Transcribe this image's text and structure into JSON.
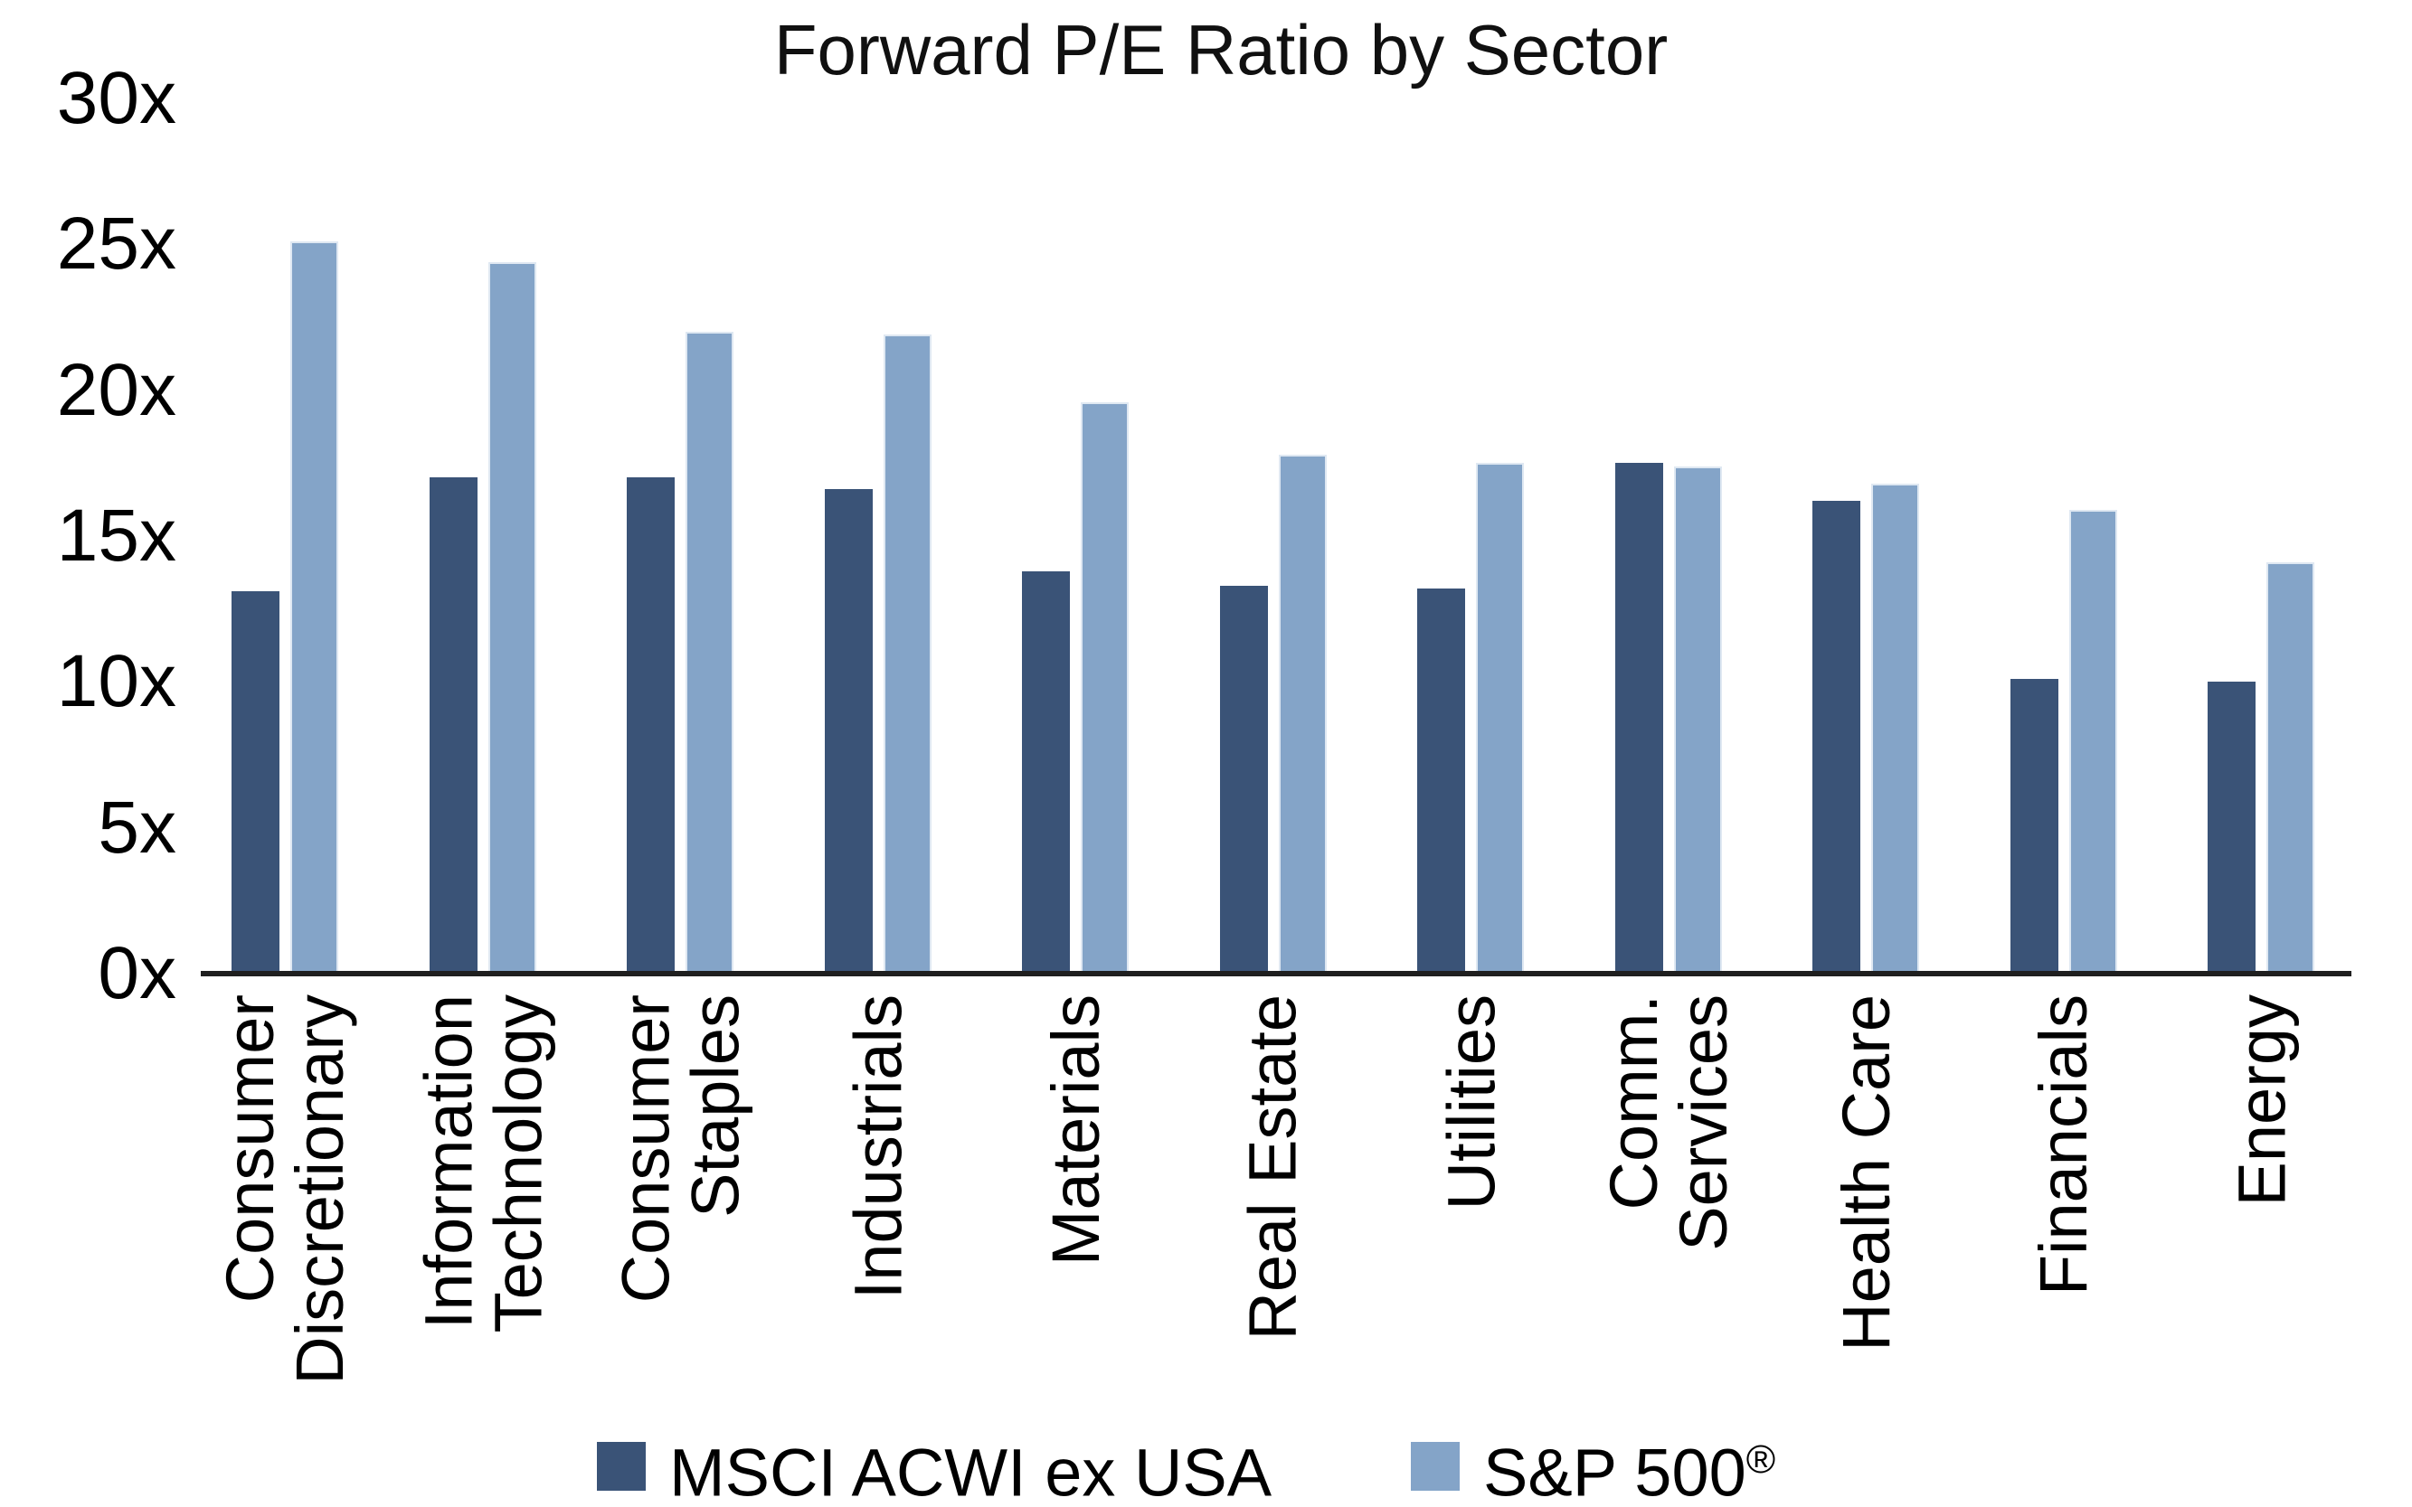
{
  "title": "Forward P/E Ratio by Sector",
  "y_axis": {
    "ticks": [
      "30x",
      "25x",
      "20x",
      "15x",
      "10x",
      "5x",
      "0x"
    ],
    "min": 0,
    "max": 30,
    "step": 5,
    "suffix": "x"
  },
  "legend": {
    "items": [
      {
        "label": "MSCI ACWI ex USA",
        "mark": "",
        "color": "#3A5377"
      },
      {
        "label": "S&P 500",
        "mark": "®",
        "color": "#84A4C8"
      }
    ],
    "position": "bottom"
  },
  "colors": {
    "msci_bar": "#3A5377",
    "sp500_bar": "#84A4C8",
    "sp500_bar_border": "#DFE8F2",
    "axis_line": "#1F1F1F",
    "text": "#000000",
    "background": "#FFFFFF"
  },
  "chart_data": {
    "type": "bar",
    "title": "Forward P/E Ratio by Sector",
    "categories": [
      "Consumer Discretionary",
      "Information Technology",
      "Consumer Staples",
      "Industrials",
      "Materials",
      "Real Estate",
      "Utilities",
      "Comm. Services",
      "Health Care",
      "Financials",
      "Energy"
    ],
    "display_lines": [
      [
        "Consumer",
        "Discretionary"
      ],
      [
        "Information",
        "Technology"
      ],
      [
        "Consumer",
        "Staples"
      ],
      [
        "Industrials"
      ],
      [
        "Materials"
      ],
      [
        "Real Estate"
      ],
      [
        "Utilities"
      ],
      [
        "Comm.",
        "Services"
      ],
      [
        "Health Care"
      ],
      [
        "Financials"
      ],
      [
        "Energy"
      ]
    ],
    "series": [
      {
        "name": "MSCI ACWI ex USA",
        "color": "#3A5377",
        "values": [
          13.1,
          17.0,
          17.0,
          16.6,
          13.8,
          13.3,
          13.2,
          17.5,
          16.2,
          10.1,
          10.0
        ]
      },
      {
        "name": "S&P 500®",
        "color": "#84A4C8",
        "values": [
          25.1,
          24.4,
          22.0,
          21.9,
          19.6,
          17.8,
          17.5,
          17.4,
          16.8,
          15.9,
          14.1
        ]
      }
    ],
    "ylim": [
      0,
      30
    ],
    "ytick_suffix": "x",
    "xlabel": "",
    "ylabel": "",
    "grid": false,
    "legend_position": "bottom"
  }
}
